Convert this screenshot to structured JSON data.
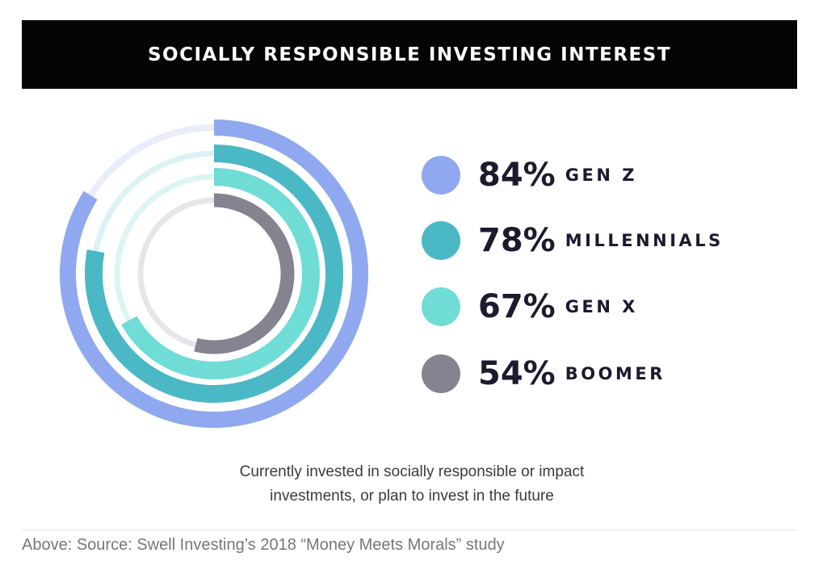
{
  "chart_data": {
    "type": "radial-bar",
    "title": "SOCIALLY RESPONSIBLE INVESTING INTEREST",
    "unit": "%",
    "series": [
      {
        "name": "GEN Z",
        "value": 84,
        "label": "84%",
        "color": "#8fa8ef"
      },
      {
        "name": "MILLENNIALS",
        "value": 78,
        "label": "78%",
        "color": "#4bb8c6"
      },
      {
        "name": "GEN X",
        "value": 67,
        "label": "67%",
        "color": "#6fdcd6"
      },
      {
        "name": "BOOMER",
        "value": 54,
        "label": "54%",
        "color": "#84838f"
      }
    ],
    "track_colors": [
      "#e8ecfb",
      "#dcf2f4",
      "#dcf5f4",
      "#e6e6ea"
    ],
    "max": 100,
    "caption": [
      "Currently invested in socially responsible or impact",
      "investments, or plan to invest in the future"
    ]
  },
  "source": "Above: Source: Swell Investing’s 2018 “Money Meets Morals” study"
}
